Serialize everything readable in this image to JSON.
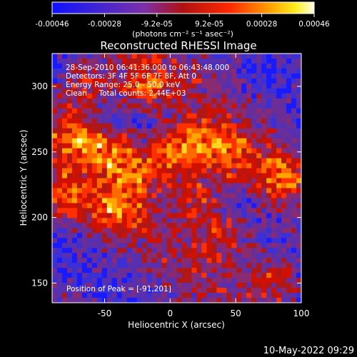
{
  "colorbar": {
    "ticks": [
      "-0.00046",
      "-0.00028",
      "-9.2e-05",
      "9.2e-05",
      "0.00028",
      "0.00046"
    ],
    "units_label": "(photons cm⁻² s⁻¹ asec⁻²)"
  },
  "chart_data": {
    "type": "heatmap",
    "title": "Reconstructed RHESSI Image",
    "xlabel": "Heliocentric X (arcsec)",
    "ylabel": "Heliocentric Y (arcsec)",
    "xlim": [
      -90,
      100
    ],
    "ylim": [
      135,
      325
    ],
    "xticks": [
      "-50",
      "0",
      "50",
      "100"
    ],
    "yticks": [
      "150",
      "200",
      "250",
      "300"
    ],
    "value_range": [
      -0.00046,
      0.00046
    ],
    "colormap": "rhessi-blue-purple-red-yellow-white",
    "annotations": [
      "28-Sep-2010 06:41:36.000 to 06:43:48.000",
      "Detectors: 3F 4F 5F 6F 7F 8F, Att 0",
      "Energy Range: 25.0 - 50.0 keV",
      "Clean     Total counts: 2.44E+03"
    ],
    "peak_text": "Position of Peak = [-91,201]",
    "bright_ridges": [
      {
        "x": -70,
        "y": 262
      },
      {
        "x": -48,
        "y": 248
      },
      {
        "x": -25,
        "y": 238
      },
      {
        "x": 0,
        "y": 246
      },
      {
        "x": 18,
        "y": 258
      },
      {
        "x": 45,
        "y": 248
      },
      {
        "x": 85,
        "y": 230
      },
      {
        "x": -80,
        "y": 215
      },
      {
        "x": -40,
        "y": 205
      },
      {
        "x": 20,
        "y": 215
      },
      {
        "x": 80,
        "y": 155
      },
      {
        "x": 40,
        "y": 185
      },
      {
        "x": -20,
        "y": 300
      },
      {
        "x": -65,
        "y": 300
      }
    ]
  },
  "footer": {
    "timestamp": "10-May-2022 09:29"
  }
}
